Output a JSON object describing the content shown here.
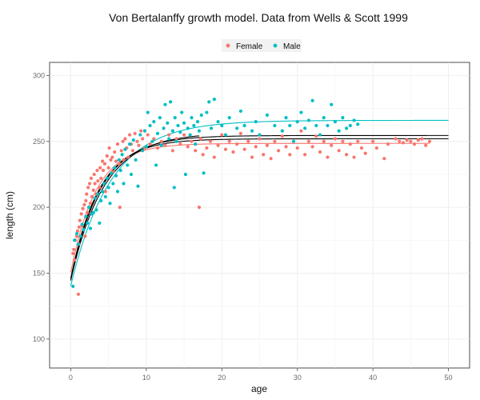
{
  "chart_data": {
    "type": "scatter",
    "title": "Von Bertalanffy growth model. Data from Wells & Scott 1999",
    "xlabel": "age",
    "ylabel": "length (cm)",
    "xlim": [
      -2.8,
      52.8
    ],
    "ylim": [
      78,
      310
    ],
    "xticks": [
      "0",
      "10",
      "20",
      "30",
      "40",
      "50"
    ],
    "yticks": [
      "100",
      "150",
      "200",
      "250",
      "300"
    ],
    "grid": true,
    "legend_position": "top",
    "series": [
      {
        "name": "Female",
        "color": "#F8766D",
        "points": [
          [
            0.3,
            165
          ],
          [
            0.4,
            168
          ],
          [
            0.5,
            160
          ],
          [
            0.6,
            175
          ],
          [
            0.8,
            178
          ],
          [
            0.9,
            182
          ],
          [
            1.0,
            134
          ],
          [
            1.1,
            185
          ],
          [
            1.1,
            172
          ],
          [
            1.2,
            190
          ],
          [
            1.4,
            195
          ],
          [
            1.5,
            186
          ],
          [
            1.6,
            199
          ],
          [
            1.8,
            202
          ],
          [
            1.9,
            178
          ],
          [
            2.0,
            205
          ],
          [
            2.1,
            210
          ],
          [
            2.2,
            196
          ],
          [
            2.3,
            215
          ],
          [
            2.4,
            200
          ],
          [
            2.5,
            218
          ],
          [
            2.6,
            203
          ],
          [
            2.7,
            222
          ],
          [
            2.8,
            208
          ],
          [
            3.0,
            213
          ],
          [
            3.1,
            225
          ],
          [
            3.2,
            218
          ],
          [
            3.4,
            210
          ],
          [
            3.5,
            228
          ],
          [
            3.6,
            220
          ],
          [
            3.8,
            215
          ],
          [
            3.9,
            230
          ],
          [
            4.0,
            222
          ],
          [
            4.2,
            235
          ],
          [
            4.3,
            228
          ],
          [
            4.5,
            233
          ],
          [
            4.6,
            212
          ],
          [
            4.8,
            239
          ],
          [
            5.0,
            230
          ],
          [
            5.1,
            245
          ],
          [
            5.3,
            236
          ],
          [
            5.5,
            238
          ],
          [
            5.6,
            227
          ],
          [
            5.8,
            242
          ],
          [
            6.0,
            235
          ],
          [
            6.2,
            248
          ],
          [
            6.4,
            233
          ],
          [
            6.5,
            200
          ],
          [
            6.7,
            243
          ],
          [
            6.9,
            250
          ],
          [
            7.0,
            236
          ],
          [
            7.2,
            252
          ],
          [
            7.4,
            245
          ],
          [
            7.6,
            238
          ],
          [
            7.8,
            255
          ],
          [
            8.0,
            248
          ],
          [
            8.2,
            243
          ],
          [
            8.5,
            256
          ],
          [
            8.8,
            250
          ],
          [
            9.0,
            247
          ],
          [
            9.3,
            258
          ],
          [
            9.5,
            252
          ],
          [
            9.8,
            245
          ],
          [
            10.2,
            255
          ],
          [
            10.5,
            248
          ],
          [
            11.0,
            252
          ],
          [
            11.5,
            245
          ],
          [
            12.0,
            250
          ],
          [
            12.5,
            247
          ],
          [
            13.0,
            255
          ],
          [
            13.5,
            243
          ],
          [
            14.0,
            252
          ],
          [
            14.5,
            248
          ],
          [
            15.0,
            255
          ],
          [
            15.5,
            246
          ],
          [
            16.0,
            250
          ],
          [
            16.5,
            243
          ],
          [
            17.0,
            200
          ],
          [
            17.2,
            252
          ],
          [
            17.5,
            240
          ],
          [
            18.0,
            245
          ],
          [
            18.5,
            250
          ],
          [
            19.0,
            238
          ],
          [
            19.5,
            247
          ],
          [
            20.0,
            255
          ],
          [
            20.5,
            244
          ],
          [
            21.0,
            250
          ],
          [
            21.5,
            242
          ],
          [
            22.0,
            248
          ],
          [
            22.5,
            256
          ],
          [
            23.0,
            244
          ],
          [
            23.5,
            250
          ],
          [
            24.0,
            238
          ],
          [
            24.5,
            246
          ],
          [
            25.0,
            252
          ],
          [
            25.5,
            240
          ],
          [
            26.0,
            247
          ],
          [
            26.5,
            237
          ],
          [
            27.0,
            250
          ],
          [
            27.5,
            243
          ],
          [
            28.0,
            254
          ],
          [
            28.5,
            246
          ],
          [
            29.0,
            240
          ],
          [
            29.5,
            250
          ],
          [
            30.0,
            245
          ],
          [
            30.5,
            258
          ],
          [
            31.0,
            240
          ],
          [
            31.5,
            250
          ],
          [
            32.0,
            246
          ],
          [
            32.5,
            254
          ],
          [
            33.0,
            242
          ],
          [
            33.5,
            250
          ],
          [
            34.0,
            238
          ],
          [
            34.5,
            247
          ],
          [
            35.0,
            252
          ],
          [
            35.5,
            243
          ],
          [
            36.0,
            250
          ],
          [
            36.5,
            240
          ],
          [
            37.0,
            248
          ],
          [
            37.5,
            238
          ],
          [
            38.0,
            250
          ],
          [
            38.5,
            245
          ],
          [
            39.0,
            241
          ],
          [
            40.0,
            250
          ],
          [
            40.5,
            245
          ],
          [
            41.5,
            237
          ],
          [
            42.0,
            248
          ],
          [
            43.0,
            252
          ],
          [
            43.5,
            250
          ],
          [
            44.0,
            249
          ],
          [
            44.5,
            251
          ],
          [
            45.0,
            250
          ],
          [
            45.5,
            248
          ],
          [
            46.0,
            251
          ],
          [
            46.5,
            252
          ],
          [
            47.0,
            247
          ],
          [
            47.5,
            250
          ]
        ]
      },
      {
        "name": "Male",
        "color": "#00BFC4",
        "points": [
          [
            0.3,
            140
          ],
          [
            0.5,
            175
          ],
          [
            0.8,
            180
          ],
          [
            1.0,
            172
          ],
          [
            1.3,
            178
          ],
          [
            1.5,
            187
          ],
          [
            1.7,
            183
          ],
          [
            2.0,
            193
          ],
          [
            2.2,
            188
          ],
          [
            2.4,
            200
          ],
          [
            2.6,
            184
          ],
          [
            2.8,
            195
          ],
          [
            3.0,
            196
          ],
          [
            3.2,
            207
          ],
          [
            3.4,
            198
          ],
          [
            3.6,
            210
          ],
          [
            3.8,
            188
          ],
          [
            4.0,
            205
          ],
          [
            4.2,
            212
          ],
          [
            4.4,
            218
          ],
          [
            4.6,
            208
          ],
          [
            4.8,
            222
          ],
          [
            5.0,
            215
          ],
          [
            5.2,
            203
          ],
          [
            5.4,
            226
          ],
          [
            5.6,
            218
          ],
          [
            5.8,
            230
          ],
          [
            6.0,
            224
          ],
          [
            6.2,
            212
          ],
          [
            6.4,
            236
          ],
          [
            6.6,
            228
          ],
          [
            6.8,
            240
          ],
          [
            7.0,
            218
          ],
          [
            7.2,
            244
          ],
          [
            7.5,
            232
          ],
          [
            7.8,
            248
          ],
          [
            8.0,
            225
          ],
          [
            8.3,
            251
          ],
          [
            8.6,
            236
          ],
          [
            8.9,
            216
          ],
          [
            9.2,
            255
          ],
          [
            9.5,
            243
          ],
          [
            9.8,
            258
          ],
          [
            10.0,
            246
          ],
          [
            10.2,
            272
          ],
          [
            10.5,
            262
          ],
          [
            10.8,
            250
          ],
          [
            11.0,
            265
          ],
          [
            11.3,
            232
          ],
          [
            11.5,
            256
          ],
          [
            11.8,
            268
          ],
          [
            12.0,
            247
          ],
          [
            12.3,
            260
          ],
          [
            12.5,
            278
          ],
          [
            12.8,
            264
          ],
          [
            13.0,
            252
          ],
          [
            13.2,
            280
          ],
          [
            13.5,
            258
          ],
          [
            13.7,
            215
          ],
          [
            13.8,
            268
          ],
          [
            14.0,
            250
          ],
          [
            14.2,
            262
          ],
          [
            14.5,
            257
          ],
          [
            14.7,
            272
          ],
          [
            15.0,
            264
          ],
          [
            15.2,
            225
          ],
          [
            15.5,
            260
          ],
          [
            15.8,
            255
          ],
          [
            16.0,
            268
          ],
          [
            16.3,
            262
          ],
          [
            16.5,
            248
          ],
          [
            16.8,
            265
          ],
          [
            17.0,
            258
          ],
          [
            17.3,
            270
          ],
          [
            17.6,
            226
          ],
          [
            18.0,
            272
          ],
          [
            18.3,
            280
          ],
          [
            18.6,
            260
          ],
          [
            19.0,
            282
          ],
          [
            19.5,
            265
          ],
          [
            20.0,
            262
          ],
          [
            20.5,
            255
          ],
          [
            21.0,
            268
          ],
          [
            22.0,
            260
          ],
          [
            22.5,
            273
          ],
          [
            23.0,
            262
          ],
          [
            24.0,
            258
          ],
          [
            24.5,
            265
          ],
          [
            25.0,
            255
          ],
          [
            26.0,
            270
          ],
          [
            27.0,
            262
          ],
          [
            28.0,
            258
          ],
          [
            28.5,
            268
          ],
          [
            29.0,
            262
          ],
          [
            29.5,
            250
          ],
          [
            30.0,
            265
          ],
          [
            30.5,
            272
          ],
          [
            31.0,
            260
          ],
          [
            31.5,
            266
          ],
          [
            32.0,
            281
          ],
          [
            32.5,
            262
          ],
          [
            33.0,
            255
          ],
          [
            33.5,
            268
          ],
          [
            34.0,
            262
          ],
          [
            34.5,
            278
          ],
          [
            35.0,
            265
          ],
          [
            35.5,
            258
          ],
          [
            36.0,
            268
          ],
          [
            36.5,
            260
          ],
          [
            37.0,
            262
          ],
          [
            37.5,
            266
          ],
          [
            38.0,
            263
          ]
        ]
      }
    ],
    "fit_curves": [
      {
        "name": "Female",
        "color": "#F8766D",
        "Linf": 248.5,
        "K": 0.3,
        "t0": -3.1,
        "x_range": [
          0,
          47.5
        ]
      },
      {
        "name": "Male",
        "color": "#00BFC4",
        "Linf": 266,
        "K": 0.19,
        "t0": -3.95,
        "x_range": [
          0,
          50
        ]
      },
      {
        "name": "",
        "color": "#000000",
        "Linf": 254.5,
        "K": 0.25,
        "t0": -3.4,
        "x_range": [
          0,
          50
        ]
      },
      {
        "name": "",
        "color": "#000000",
        "Linf": 252,
        "K": 0.27,
        "t0": -3.2,
        "x_range": [
          0,
          50
        ]
      },
      {
        "name": "",
        "color": "#000000",
        "Linf": 256.5,
        "K": 0.23,
        "t0": -3.6,
        "x_range": [
          0,
          17
        ]
      }
    ]
  }
}
